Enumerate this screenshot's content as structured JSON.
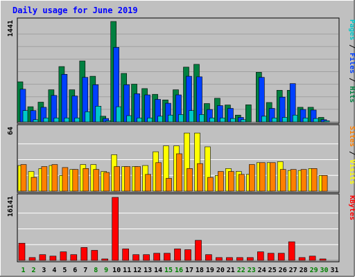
{
  "chart_data": {
    "type": "bar",
    "title": "Daily usage for June 2019",
    "x": [
      "1",
      "2",
      "3",
      "4",
      "5",
      "6",
      "7",
      "8",
      "9",
      "10",
      "11",
      "12",
      "13",
      "14",
      "15",
      "16",
      "17",
      "18",
      "19",
      "20",
      "21",
      "22",
      "23",
      "24",
      "25",
      "26",
      "27",
      "28",
      "29",
      "30",
      "31"
    ],
    "weekend_days": [
      "1",
      "2",
      "8",
      "9",
      "15",
      "16",
      "22",
      "23",
      "29",
      "30"
    ],
    "panels": [
      {
        "name": "hits",
        "ymax_label": "1441",
        "ymax": 1441,
        "right_label_parts": [
          {
            "text": "Pages",
            "color": "#00c8c8"
          },
          {
            "text": " / ",
            "color": "#000000"
          },
          {
            "text": "Files",
            "color": "#0040ff"
          },
          {
            "text": " / ",
            "color": "#000000"
          },
          {
            "text": "Hits",
            "color": "#008040"
          }
        ],
        "series": [
          {
            "name": "Hits",
            "color": "#008040",
            "values": [
              575,
              218,
              283,
              461,
              794,
              461,
              875,
              655,
              81,
              1441,
              696,
              542,
              478,
              396,
              315,
              461,
              786,
              826,
              263,
              339,
              242,
              97,
              245,
              712,
              278,
              453,
              453,
              210,
              210,
              65,
              0
            ]
          },
          {
            "name": "Files",
            "color": "#0040ff",
            "values": [
              469,
              162,
              210,
              380,
              683,
              372,
              639,
              534,
              49,
              1069,
              534,
              404,
              388,
              323,
              267,
              388,
              655,
              647,
              178,
              234,
              194,
              65,
              0,
              639,
              194,
              356,
              550,
              178,
              170,
              32,
              0
            ]
          },
          {
            "name": "Pages",
            "color": "#00c8c8",
            "values": [
              162,
              32,
              57,
              57,
              57,
              57,
              146,
              226,
              16,
              218,
              89,
              57,
              57,
              81,
              97,
              105,
              162,
              105,
              57,
              57,
              49,
              32,
              0,
              81,
              57,
              65,
              97,
              57,
              49,
              16,
              0
            ]
          }
        ]
      },
      {
        "name": "visits",
        "ymax_label": "64",
        "ymax": 64,
        "right_label_parts": [
          {
            "text": "Sites",
            "color": "#ff8000"
          },
          {
            "text": " / ",
            "color": "#000000"
          },
          {
            "text": "Visits",
            "color": "#ffff00"
          }
        ],
        "series": [
          {
            "name": "Visits",
            "color": "#ffff00",
            "values": [
              26,
              20,
              23,
              26,
              16,
              22,
              27,
              27,
              20,
              37,
              25,
              25,
              26,
              40,
              46,
              46,
              59,
              59,
              45,
              16,
              23,
              20,
              17,
              29,
              29,
              30,
              21,
              21,
              23,
              16,
              0
            ]
          },
          {
            "name": "Sites",
            "color": "#ff8000",
            "values": [
              27,
              14,
              25,
              27,
              24,
              22,
              23,
              22,
              19,
              25,
              25,
              25,
              17,
              29,
              13,
              38,
              23,
              28,
              14,
              20,
              20,
              17,
              27,
              29,
              29,
              22,
              22,
              22,
              23,
              16,
              0
            ]
          }
        ]
      },
      {
        "name": "kbytes",
        "ymax_label": "16141",
        "ymax": 16141,
        "right_label_parts": [
          {
            "text": "KBytes",
            "color": "#ff0000"
          }
        ],
        "series": [
          {
            "name": "KBytes",
            "color": "#ff0000",
            "values": [
              4404,
              734,
              1468,
              1101,
              2202,
              1468,
              3303,
              2569,
              367,
              16141,
              2936,
              1468,
              1468,
              1835,
              1835,
              2936,
              2752,
              5138,
              1468,
              734,
              734,
              734,
              734,
              2202,
              1835,
              1835,
              4771,
              734,
              1101,
              367,
              0
            ]
          }
        ]
      }
    ]
  },
  "colors": {
    "background": "#c0c0c0",
    "frame": "#c0c0c0",
    "title": "#0000ff",
    "weekday_label": "#000000",
    "weekend_label": "#008000",
    "gridline": "#ffffff"
  }
}
